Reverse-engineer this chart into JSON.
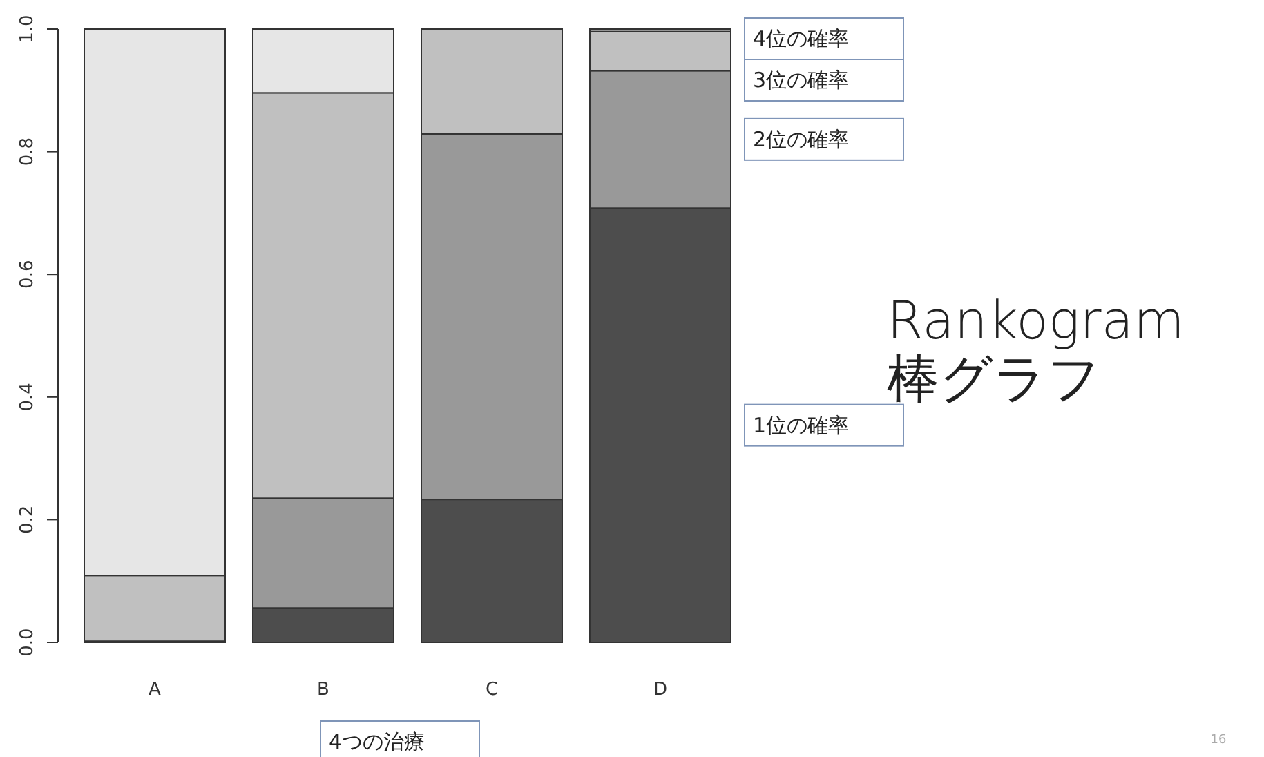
{
  "chart_data": {
    "type": "bar",
    "stacked": true,
    "title": "Rankogram\n棒グラフ",
    "xlabel": "4つの治療",
    "categories": [
      "A",
      "B",
      "C",
      "D"
    ],
    "series": [
      {
        "name": "1位の確率",
        "color": "#4d4d4d",
        "values": [
          0.002,
          0.056,
          0.233,
          0.708
        ]
      },
      {
        "name": "2位の確率",
        "color": "#999999",
        "values": [
          0,
          0.179,
          0.596,
          0.224
        ]
      },
      {
        "name": "3位の確率",
        "color": "#c0c0c0",
        "values": [
          0.107,
          0.661,
          0.171,
          0.064
        ]
      },
      {
        "name": "4位の確率",
        "color": "#e6e6e6",
        "values": [
          0.891,
          0.104,
          0,
          0.004
        ]
      }
    ],
    "ylim": [
      0,
      1
    ],
    "yticks": [
      {
        "value": 0,
        "label": "0.0"
      },
      {
        "value": 0.2,
        "label": "0.2"
      },
      {
        "value": 0.4,
        "label": "0.4"
      },
      {
        "value": 0.6,
        "label": "0.6"
      },
      {
        "value": 0.8,
        "label": "0.8"
      },
      {
        "value": 1,
        "label": "1.0"
      }
    ],
    "annotations": [
      "16"
    ]
  }
}
